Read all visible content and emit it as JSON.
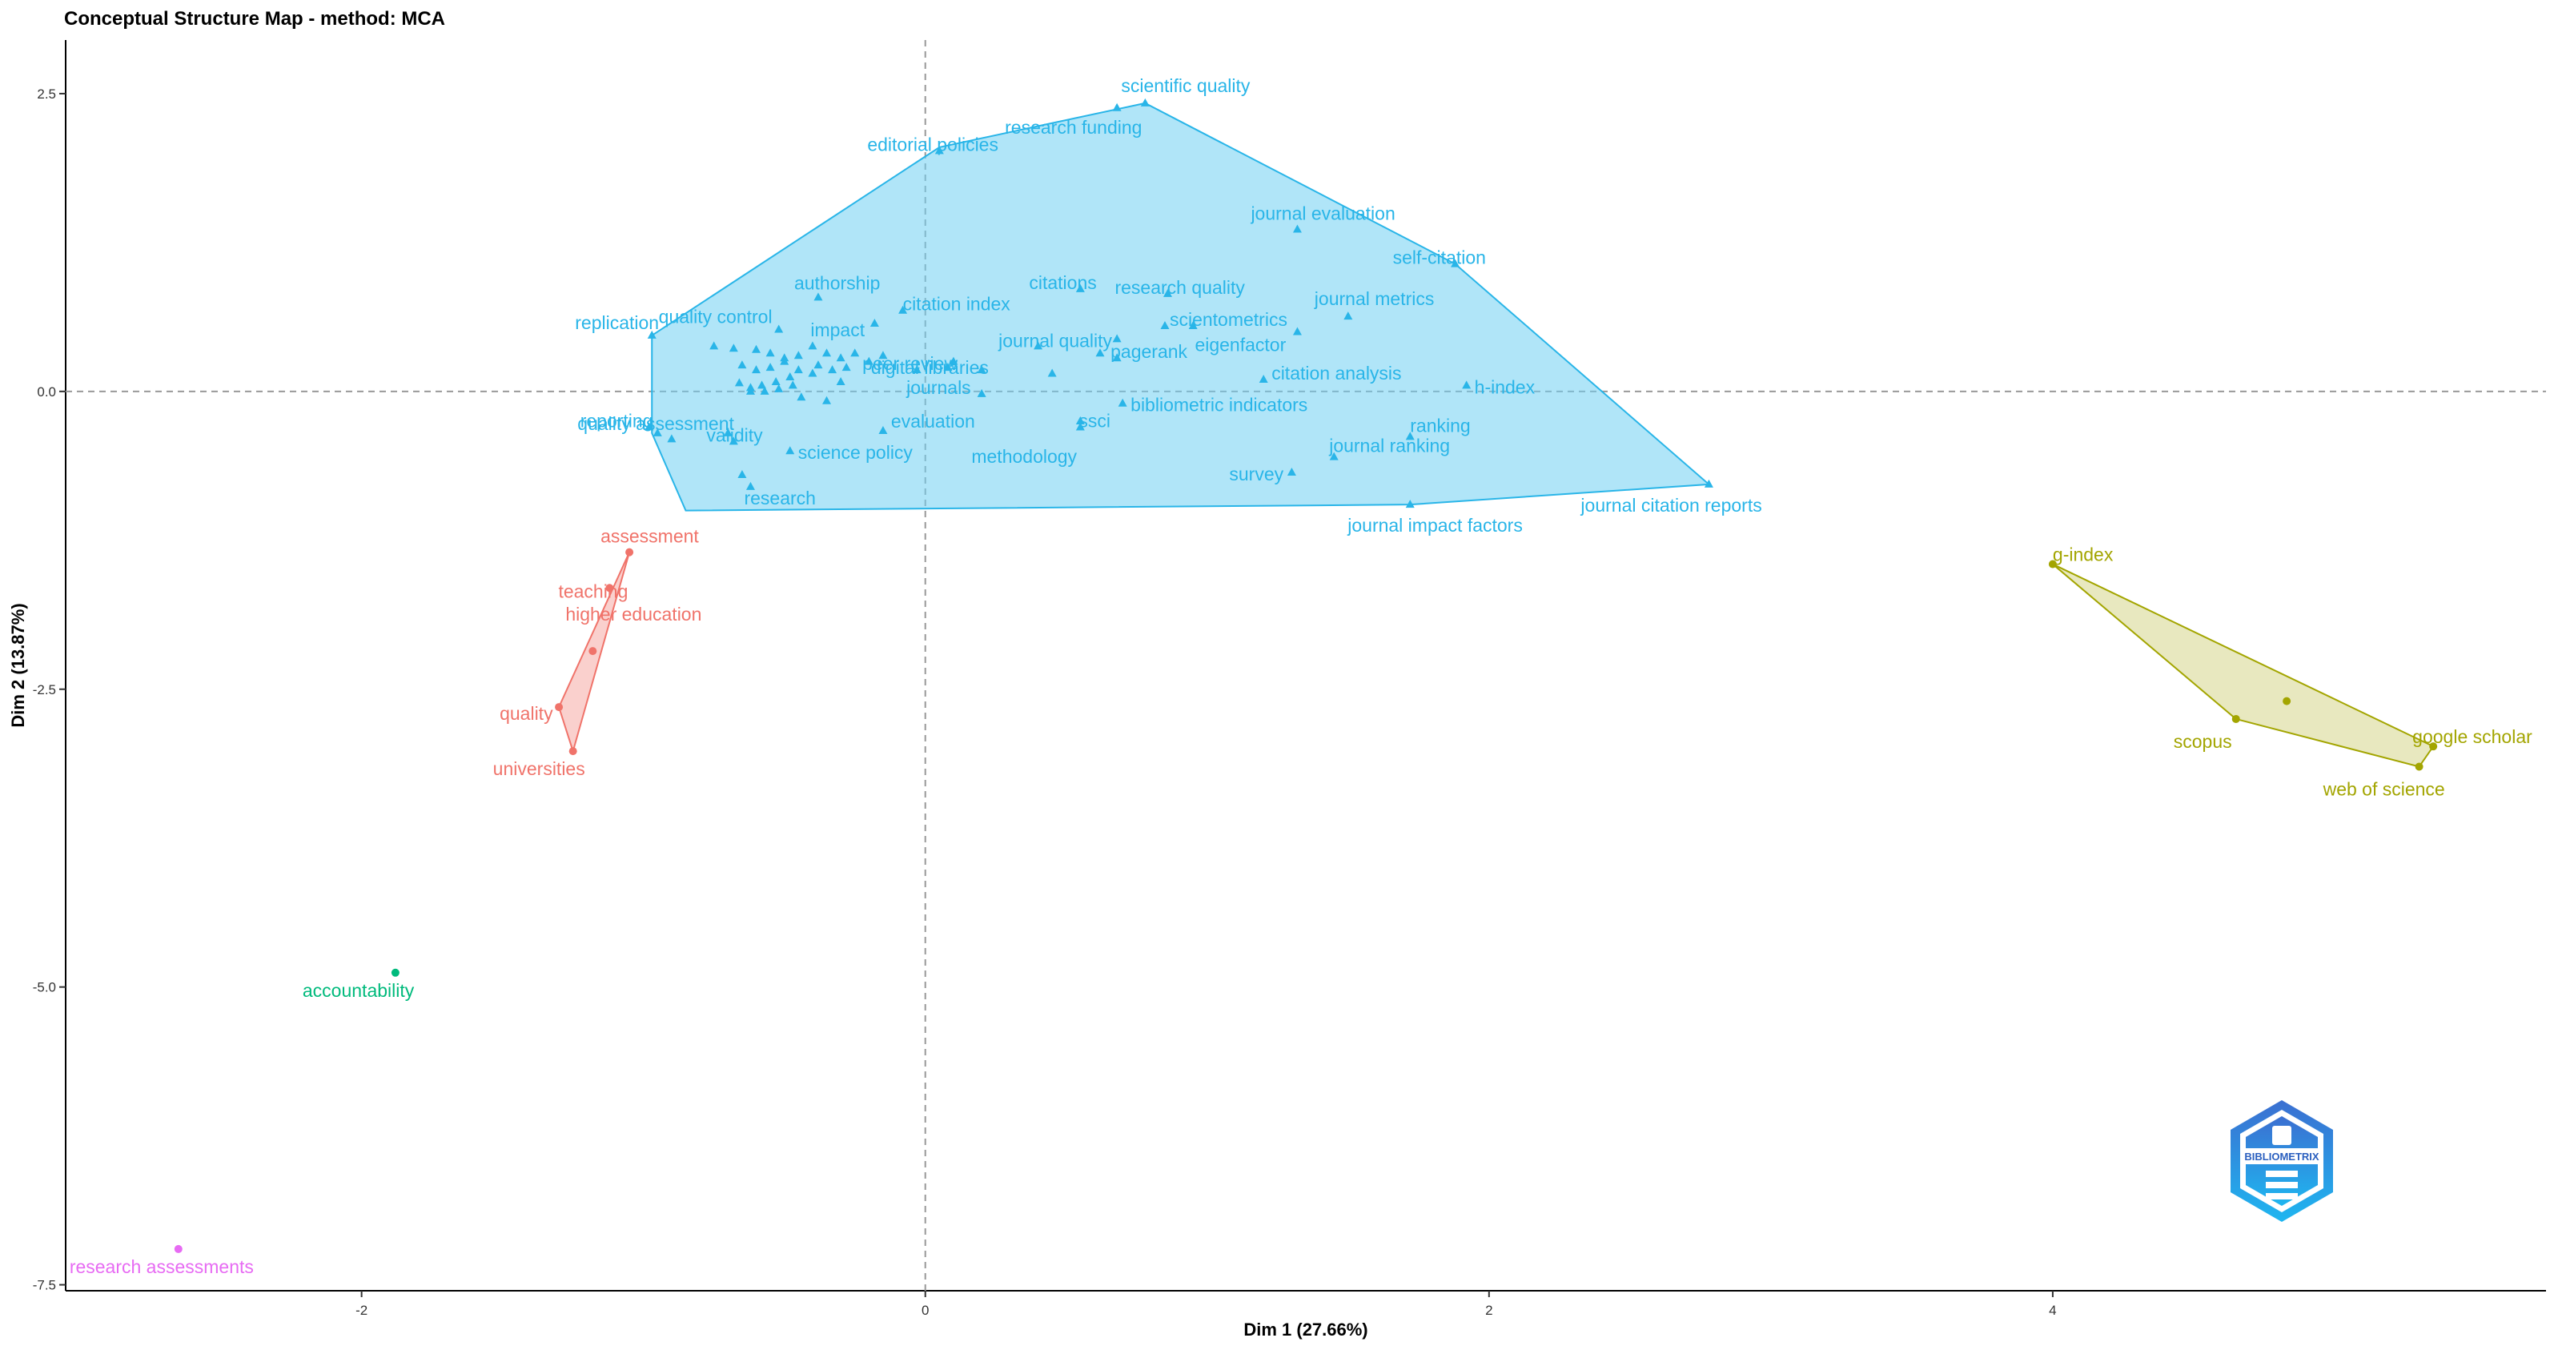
{
  "chart_data": {
    "type": "scatter",
    "title": "Conceptual Structure Map - method: MCA",
    "xlabel": "Dim 1 (27.66%)",
    "ylabel": "Dim 2 (13.87%)",
    "xlim": [
      -3.05,
      5.75
    ],
    "ylim": [
      -7.55,
      2.95
    ],
    "xticks": [
      -2,
      0,
      2,
      4
    ],
    "xtick_labels": [
      "-2",
      "0",
      "2",
      "4"
    ],
    "yticks": [
      2.5,
      0.0,
      -2.5,
      -5.0,
      -7.5
    ],
    "ytick_labels": [
      "2.5",
      "0.0",
      "-2.5",
      "-5.0",
      "-7.5"
    ],
    "reference_lines": {
      "x": 0,
      "y": 0,
      "style": "dashed"
    },
    "grid": false,
    "legend": "none",
    "clusters": [
      {
        "color": "#29B5E8",
        "fill": "#6FCFF2",
        "marker": "triangle",
        "hull": [
          [
            -0.97,
            0.47
          ],
          [
            0.05,
            2.05
          ],
          [
            0.78,
            2.42
          ],
          [
            1.88,
            1.07
          ],
          [
            2.78,
            -0.78
          ],
          [
            1.72,
            -0.95
          ],
          [
            -0.85,
            -1.0
          ],
          [
            -0.97,
            -0.35
          ]
        ],
        "points": [
          {
            "label": "scientific quality",
            "x": 0.78,
            "y": 2.42
          },
          {
            "label": "research funding",
            "x": 0.68,
            "y": 2.38
          },
          {
            "label": "editorial policies",
            "x": 0.05,
            "y": 2.02
          },
          {
            "label": "journal evaluation",
            "x": 1.32,
            "y": 1.36
          },
          {
            "label": "self-citation",
            "x": 1.88,
            "y": 1.07
          },
          {
            "label": "citations",
            "x": 0.55,
            "y": 0.86
          },
          {
            "label": "research quality",
            "x": 0.86,
            "y": 0.82
          },
          {
            "label": "authorship",
            "x": -0.38,
            "y": 0.79
          },
          {
            "label": "citation index",
            "x": -0.08,
            "y": 0.68
          },
          {
            "label": "journal metrics",
            "x": 1.5,
            "y": 0.63
          },
          {
            "label": "scientometrics",
            "x": 0.85,
            "y": 0.55
          },
          {
            "label": "journal quality",
            "x": 0.68,
            "y": 0.44
          },
          {
            "label": "replication",
            "x": -0.97,
            "y": 0.47
          },
          {
            "label": "quality control",
            "x": -0.52,
            "y": 0.52
          },
          {
            "label": "impact",
            "x": -0.18,
            "y": 0.57
          },
          {
            "label": "eigenfactor",
            "x": 1.32,
            "y": 0.5
          },
          {
            "label": "digital libraries",
            "x": 0.08,
            "y": 0.2
          },
          {
            "label": "pagerank",
            "x": 0.68,
            "y": 0.28
          },
          {
            "label": "citation analysis",
            "x": 1.2,
            "y": 0.1
          },
          {
            "label": "h-index",
            "x": 1.92,
            "y": 0.05
          },
          {
            "label": "peer review",
            "x": -0.03,
            "y": 0.18
          },
          {
            "label": "journals",
            "x": 0.2,
            "y": -0.02
          },
          {
            "label": "bibliometric indicators",
            "x": 0.7,
            "y": -0.1
          },
          {
            "label": "ssci",
            "x": 0.55,
            "y": -0.3
          },
          {
            "label": "reporting",
            "x": -0.98,
            "y": -0.3
          },
          {
            "label": "validity",
            "x": -0.68,
            "y": -0.42
          },
          {
            "label": "evaluation",
            "x": -0.15,
            "y": -0.33
          },
          {
            "label": "ranking",
            "x": 1.72,
            "y": -0.38
          },
          {
            "label": "methodology",
            "x": 0.55,
            "y": -0.25
          },
          {
            "label": "journal ranking",
            "x": 1.45,
            "y": -0.55
          },
          {
            "label": "quality assessment",
            "x": -0.95,
            "y": -0.35
          },
          {
            "label": "science policy",
            "x": -0.48,
            "y": -0.5
          },
          {
            "label": "survey",
            "x": 1.3,
            "y": -0.68
          },
          {
            "label": "journal citation reports",
            "x": 2.78,
            "y": -0.78
          },
          {
            "label": "research",
            "x": -0.62,
            "y": -0.8
          },
          {
            "label": "journal impact factors",
            "x": 1.72,
            "y": -0.95
          }
        ],
        "unlabeled_points": [
          [
            -0.75,
            0.38
          ],
          [
            -0.68,
            0.36
          ],
          [
            -0.6,
            0.35
          ],
          [
            -0.55,
            0.32
          ],
          [
            -0.5,
            0.28
          ],
          [
            -0.45,
            0.3
          ],
          [
            -0.4,
            0.38
          ],
          [
            -0.35,
            0.32
          ],
          [
            -0.3,
            0.28
          ],
          [
            -0.25,
            0.32
          ],
          [
            -0.2,
            0.25
          ],
          [
            -0.15,
            0.3
          ],
          [
            -0.65,
            0.22
          ],
          [
            -0.6,
            0.18
          ],
          [
            -0.55,
            0.2
          ],
          [
            -0.5,
            0.25
          ],
          [
            -0.45,
            0.18
          ],
          [
            -0.38,
            0.22
          ],
          [
            -0.33,
            0.18
          ],
          [
            -0.28,
            0.2
          ],
          [
            -0.4,
            0.15
          ],
          [
            -0.48,
            0.12
          ],
          [
            -0.53,
            0.08
          ],
          [
            -0.58,
            0.05
          ],
          [
            -0.62,
            0.03
          ],
          [
            -0.66,
            0.07
          ],
          [
            -0.52,
            0.02
          ],
          [
            -0.44,
            -0.05
          ],
          [
            -0.35,
            -0.08
          ],
          [
            -0.3,
            0.08
          ],
          [
            -0.9,
            -0.4
          ],
          [
            -0.62,
            0.0
          ],
          [
            -0.57,
            0.0
          ],
          [
            -0.47,
            0.05
          ],
          [
            -0.7,
            -0.35
          ],
          [
            -0.65,
            -0.7
          ],
          [
            0.1,
            0.25
          ],
          [
            0.2,
            0.18
          ],
          [
            0.4,
            0.38
          ],
          [
            0.62,
            0.32
          ],
          [
            0.95,
            0.55
          ],
          [
            0.45,
            0.15
          ]
        ]
      },
      {
        "color": "#F0736A",
        "fill": "#F5A9A4",
        "marker": "circle",
        "hull": [
          [
            -1.05,
            -1.35
          ],
          [
            -1.3,
            -2.65
          ],
          [
            -1.25,
            -3.02
          ]
        ],
        "points": [
          {
            "label": "assessment",
            "x": -1.05,
            "y": -1.35
          },
          {
            "label": "teaching",
            "x": -1.12,
            "y": -1.65
          },
          {
            "label": "higher education",
            "x": -1.18,
            "y": -2.18
          },
          {
            "label": "quality",
            "x": -1.3,
            "y": -2.65
          },
          {
            "label": "universities",
            "x": -1.25,
            "y": -3.02
          }
        ]
      },
      {
        "color": "#A3A500",
        "fill": "#D6D68A",
        "marker": "circle",
        "hull": [
          [
            4.0,
            -1.45
          ],
          [
            5.35,
            -2.98
          ],
          [
            5.3,
            -3.15
          ],
          [
            4.65,
            -2.75
          ]
        ],
        "points": [
          {
            "label": "g-index",
            "x": 4.0,
            "y": -1.45
          },
          {
            "label": "scopus",
            "x": 4.65,
            "y": -2.75
          },
          {
            "label": "google scholar",
            "x": 5.35,
            "y": -2.98
          },
          {
            "label": "web of science",
            "x": 5.3,
            "y": -3.15
          }
        ],
        "unlabeled_points": [
          [
            4.83,
            -2.6
          ]
        ]
      },
      {
        "color": "#00BA7C",
        "marker": "circle",
        "points": [
          {
            "label": "accountability",
            "x": -1.88,
            "y": -4.88
          }
        ]
      },
      {
        "color": "#E76BF3",
        "marker": "circle",
        "points": [
          {
            "label": "research assessments",
            "x": -2.65,
            "y": -7.2
          }
        ]
      }
    ]
  },
  "logo": {
    "text": "BIBLIOMETRIX"
  }
}
